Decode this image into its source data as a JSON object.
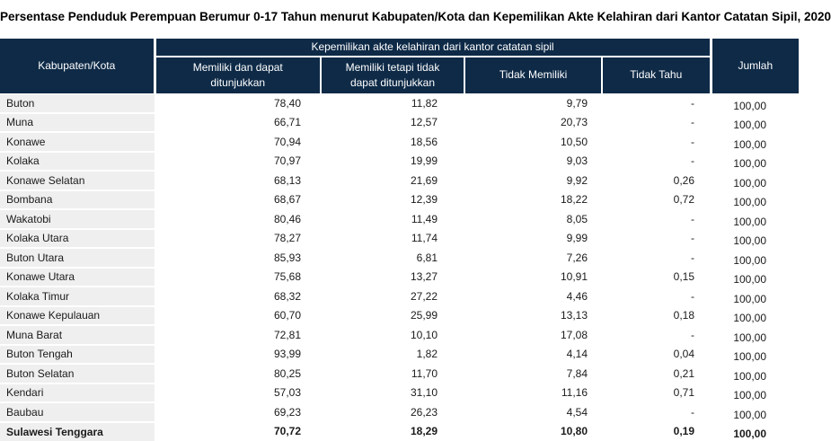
{
  "page_title": "Persentase Penduduk Perempuan Berumur 0-17 Tahun menurut Kabupaten/Kota dan Kepemilikan Akte Kelahiran dari Kantor Catatan Sipil, 2020",
  "colors": {
    "header_bg": "#0e2a47",
    "header_text": "#ffffff",
    "row_label_bg": "#efefef",
    "text": "#1a1a1a"
  },
  "table": {
    "row_header": "Kabupaten/Kota",
    "group_header": "Kepemilikan akte kelahiran dari kantor catatan sipil",
    "sub_headers": [
      "Memiliki dan dapat ditunjukkan",
      "Memiliki tetapi tidak dapat ditunjukkan",
      "Tidak Memiliki",
      "Tidak Tahu"
    ],
    "total_header": "Jumlah",
    "rows": [
      {
        "name": "Buton",
        "values": [
          "78,40",
          "11,82",
          "9,79",
          "-",
          "100,00"
        ],
        "bold": false
      },
      {
        "name": "Muna",
        "values": [
          "66,71",
          "12,57",
          "20,73",
          "-",
          "100,00"
        ],
        "bold": false
      },
      {
        "name": "Konawe",
        "values": [
          "70,94",
          "18,56",
          "10,50",
          "-",
          "100,00"
        ],
        "bold": false
      },
      {
        "name": "Kolaka",
        "values": [
          "70,97",
          "19,99",
          "9,03",
          "-",
          "100,00"
        ],
        "bold": false
      },
      {
        "name": "Konawe Selatan",
        "values": [
          "68,13",
          "21,69",
          "9,92",
          "0,26",
          "100,00"
        ],
        "bold": false
      },
      {
        "name": "Bombana",
        "values": [
          "68,67",
          "12,39",
          "18,22",
          "0,72",
          "100,00"
        ],
        "bold": false
      },
      {
        "name": "Wakatobi",
        "values": [
          "80,46",
          "11,49",
          "8,05",
          "-",
          "100,00"
        ],
        "bold": false
      },
      {
        "name": "Kolaka Utara",
        "values": [
          "78,27",
          "11,74",
          "9,99",
          "-",
          "100,00"
        ],
        "bold": false
      },
      {
        "name": "Buton Utara",
        "values": [
          "85,93",
          "6,81",
          "7,26",
          "-",
          "100,00"
        ],
        "bold": false
      },
      {
        "name": "Konawe Utara",
        "values": [
          "75,68",
          "13,27",
          "10,91",
          "0,15",
          "100,00"
        ],
        "bold": false
      },
      {
        "name": "Kolaka Timur",
        "values": [
          "68,32",
          "27,22",
          "4,46",
          "-",
          "100,00"
        ],
        "bold": false
      },
      {
        "name": "Konawe Kepulauan",
        "values": [
          "60,70",
          "25,99",
          "13,13",
          "0,18",
          "100,00"
        ],
        "bold": false
      },
      {
        "name": "Muna Barat",
        "values": [
          "72,81",
          "10,10",
          "17,08",
          "-",
          "100,00"
        ],
        "bold": false
      },
      {
        "name": "Buton Tengah",
        "values": [
          "93,99",
          "1,82",
          "4,14",
          "0,04",
          "100,00"
        ],
        "bold": false
      },
      {
        "name": "Buton Selatan",
        "values": [
          "80,25",
          "11,70",
          "7,84",
          "0,21",
          "100,00"
        ],
        "bold": false
      },
      {
        "name": "Kendari",
        "values": [
          "57,03",
          "31,10",
          "11,16",
          "0,71",
          "100,00"
        ],
        "bold": false
      },
      {
        "name": "Baubau",
        "values": [
          "69,23",
          "26,23",
          "4,54",
          "-",
          "100,00"
        ],
        "bold": false
      },
      {
        "name": "Sulawesi Tenggara",
        "values": [
          "70,72",
          "18,29",
          "10,80",
          "0,19",
          "100,00"
        ],
        "bold": true
      }
    ]
  },
  "chart_data": {
    "type": "table",
    "title": "Persentase Penduduk Perempuan Berumur 0-17 Tahun menurut Kabupaten/Kota dan Kepemilikan Akte Kelahiran dari Kantor Catatan Sipil, 2020",
    "units": "percent",
    "column_group": "Kepemilikan akte kelahiran dari kantor catatan sipil",
    "columns": [
      "Kabupaten/Kota",
      "Memiliki dan dapat ditunjukkan",
      "Memiliki tetapi tidak dapat ditunjukkan",
      "Tidak Memiliki",
      "Tidak Tahu",
      "Jumlah"
    ],
    "rows": [
      [
        "Buton",
        78.4,
        11.82,
        9.79,
        null,
        100.0
      ],
      [
        "Muna",
        66.71,
        12.57,
        20.73,
        null,
        100.0
      ],
      [
        "Konawe",
        70.94,
        18.56,
        10.5,
        null,
        100.0
      ],
      [
        "Kolaka",
        70.97,
        19.99,
        9.03,
        null,
        100.0
      ],
      [
        "Konawe Selatan",
        68.13,
        21.69,
        9.92,
        0.26,
        100.0
      ],
      [
        "Bombana",
        68.67,
        12.39,
        18.22,
        0.72,
        100.0
      ],
      [
        "Wakatobi",
        80.46,
        11.49,
        8.05,
        null,
        100.0
      ],
      [
        "Kolaka Utara",
        78.27,
        11.74,
        9.99,
        null,
        100.0
      ],
      [
        "Buton Utara",
        85.93,
        6.81,
        7.26,
        null,
        100.0
      ],
      [
        "Konawe Utara",
        75.68,
        13.27,
        10.91,
        0.15,
        100.0
      ],
      [
        "Kolaka Timur",
        68.32,
        27.22,
        4.46,
        null,
        100.0
      ],
      [
        "Konawe Kepulauan",
        60.7,
        25.99,
        13.13,
        0.18,
        100.0
      ],
      [
        "Muna Barat",
        72.81,
        10.1,
        17.08,
        null,
        100.0
      ],
      [
        "Buton Tengah",
        93.99,
        1.82,
        4.14,
        0.04,
        100.0
      ],
      [
        "Buton Selatan",
        80.25,
        11.7,
        7.84,
        0.21,
        100.0
      ],
      [
        "Kendari",
        57.03,
        31.1,
        11.16,
        0.71,
        100.0
      ],
      [
        "Baubau",
        69.23,
        26.23,
        4.54,
        null,
        100.0
      ],
      [
        "Sulawesi Tenggara",
        70.72,
        18.29,
        10.8,
        0.19,
        100.0
      ]
    ],
    "missing_value_symbol": "-",
    "decimal_separator": ","
  }
}
